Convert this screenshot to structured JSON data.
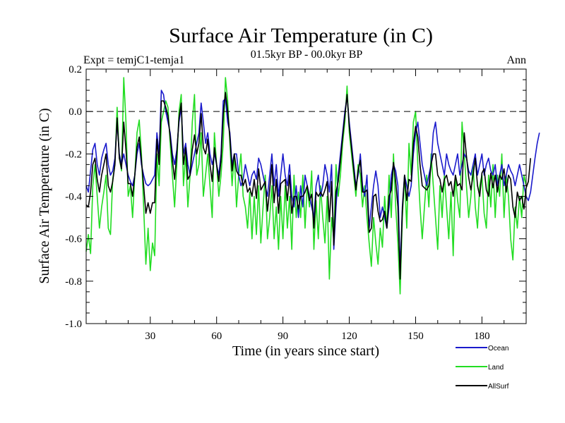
{
  "chart_data": {
    "type": "line",
    "title": "Surface Air Temperature (in C)",
    "subtitle_left": "Expt = temjC1-temja1",
    "subtitle_center": "01.5kyr BP - 00.0kyr BP",
    "subtitle_right": "Ann",
    "xlabel": "Time (in years since start)",
    "ylabel": "Surface Air Temperature (in C)",
    "xlim": [
      1,
      200
    ],
    "ylim": [
      -1.0,
      0.2
    ],
    "x_major_ticks": [
      30,
      60,
      90,
      120,
      150,
      180
    ],
    "x_tick_labels": [
      "30",
      "60",
      "90",
      "120",
      "150",
      "180"
    ],
    "x_minor_step": 10,
    "y_major_ticks": [
      -1.0,
      -0.8,
      -0.6,
      -0.4,
      -0.2,
      0.0,
      0.2
    ],
    "y_tick_labels": [
      "-1.0",
      "-0.8",
      "-0.6",
      "-0.4",
      "-0.2",
      "0.0",
      "0.2"
    ],
    "y_minor_step": 0.05,
    "reference_line": {
      "y": 0.0,
      "style": "dashed"
    },
    "series": [
      {
        "name": "Land",
        "color": "#22dd22",
        "values": [
          -0.66,
          -0.58,
          -0.67,
          -0.35,
          -0.25,
          -0.4,
          -0.55,
          -0.45,
          -0.38,
          -0.3,
          -0.55,
          -0.58,
          -0.32,
          -0.25,
          0.02,
          -0.22,
          -0.28,
          0.16,
          -0.05,
          -0.4,
          -0.35,
          -0.5,
          -0.3,
          -0.1,
          -0.04,
          -0.2,
          -0.45,
          -0.72,
          -0.55,
          -0.75,
          -0.62,
          -0.68,
          -0.2,
          -0.35,
          -0.05,
          0.0,
          0.05,
          0.02,
          -0.15,
          -0.3,
          -0.45,
          -0.25,
          0.0,
          0.08,
          -0.35,
          -0.2,
          -0.45,
          -0.3,
          -0.05,
          0.08,
          -0.3,
          -0.25,
          -0.1,
          -0.4,
          -0.3,
          -0.2,
          -0.35,
          -0.5,
          -0.1,
          -0.25,
          -0.4,
          -0.3,
          -0.15,
          0.16,
          0.05,
          -0.15,
          -0.35,
          -0.2,
          -0.45,
          -0.3,
          -0.2,
          -0.4,
          -0.45,
          -0.55,
          -0.38,
          -0.6,
          -0.4,
          -0.58,
          -0.35,
          -0.62,
          -0.45,
          -0.3,
          -0.6,
          -0.5,
          -0.35,
          -0.6,
          -0.45,
          -0.65,
          -0.4,
          -0.6,
          -0.35,
          -0.55,
          -0.4,
          -0.65,
          -0.3,
          -0.5,
          -0.38,
          -0.5,
          -0.3,
          -0.55,
          -0.35,
          -0.45,
          -0.28,
          -0.65,
          -0.42,
          -0.6,
          -0.35,
          -0.5,
          -0.62,
          -0.4,
          -0.79,
          -0.5,
          -0.6,
          -0.25,
          -0.4,
          -0.3,
          -0.15,
          -0.05,
          0.12,
          -0.1,
          -0.2,
          -0.3,
          -0.4,
          -0.25,
          -0.3,
          -0.45,
          -0.35,
          -0.5,
          -0.62,
          -0.73,
          -0.5,
          -0.62,
          -0.72,
          -0.55,
          -0.64,
          -0.4,
          -0.55,
          -0.3,
          -0.5,
          -0.2,
          -0.45,
          -0.62,
          -0.86,
          -0.5,
          -0.3,
          -0.55,
          -0.15,
          -0.3,
          -0.05,
          0.0,
          -0.25,
          -0.45,
          -0.6,
          -0.45,
          -0.3,
          -0.45,
          -0.2,
          -0.35,
          -0.5,
          -0.65,
          -0.35,
          -0.5,
          -0.3,
          -0.45,
          -0.6,
          -0.38,
          -0.68,
          -0.3,
          -0.42,
          -0.5,
          -0.05,
          -0.2,
          -0.35,
          -0.5,
          -0.4,
          -0.25,
          -0.45,
          -0.55,
          -0.35,
          -0.3,
          -0.48,
          -0.55,
          -0.3,
          -0.45,
          -0.25,
          -0.5,
          -0.3,
          -0.4,
          -0.2,
          -0.5,
          -0.3,
          -0.4,
          -0.6,
          -0.7,
          -0.45,
          -0.55,
          -0.4,
          -0.5,
          -0.3,
          -0.35
        ]
      },
      {
        "name": "Ocean",
        "color": "#1a1acc",
        "values": [
          -0.35,
          -0.38,
          -0.28,
          -0.18,
          -0.15,
          -0.25,
          -0.3,
          -0.22,
          -0.18,
          -0.15,
          -0.25,
          -0.3,
          -0.28,
          -0.22,
          -0.05,
          -0.2,
          -0.25,
          -0.2,
          -0.25,
          -0.3,
          -0.33,
          -0.35,
          -0.3,
          -0.2,
          -0.15,
          -0.25,
          -0.3,
          -0.34,
          -0.35,
          -0.34,
          -0.32,
          -0.3,
          -0.1,
          -0.2,
          0.1,
          0.08,
          0.0,
          -0.05,
          -0.1,
          -0.2,
          -0.25,
          -0.18,
          -0.05,
          0.02,
          -0.2,
          -0.15,
          -0.25,
          -0.3,
          -0.25,
          -0.2,
          -0.15,
          -0.1,
          0.04,
          -0.05,
          -0.15,
          -0.1,
          -0.2,
          -0.25,
          -0.2,
          -0.25,
          -0.3,
          -0.2,
          0.05,
          0.06,
          -0.05,
          -0.1,
          -0.25,
          -0.2,
          -0.2,
          -0.3,
          -0.35,
          -0.32,
          -0.25,
          -0.3,
          -0.35,
          -0.3,
          -0.28,
          -0.32,
          -0.22,
          -0.25,
          -0.3,
          -0.35,
          -0.4,
          -0.3,
          -0.2,
          -0.35,
          -0.25,
          -0.4,
          -0.3,
          -0.2,
          -0.3,
          -0.35,
          -0.25,
          -0.4,
          -0.45,
          -0.35,
          -0.5,
          -0.35,
          -0.45,
          -0.3,
          -0.35,
          -0.4,
          -0.45,
          -0.5,
          -0.35,
          -0.3,
          -0.4,
          -0.35,
          -0.25,
          -0.3,
          -0.38,
          -0.25,
          -0.65,
          -0.45,
          -0.3,
          -0.2,
          -0.1,
          0.0,
          0.07,
          -0.05,
          -0.15,
          -0.25,
          -0.35,
          -0.3,
          -0.2,
          -0.35,
          -0.4,
          -0.3,
          -0.55,
          -0.45,
          -0.35,
          -0.28,
          -0.35,
          -0.5,
          -0.45,
          -0.5,
          -0.55,
          -0.45,
          -0.3,
          -0.25,
          -0.28,
          -0.35,
          -0.75,
          -0.45,
          -0.3,
          -0.35,
          -0.4,
          -0.35,
          -0.2,
          -0.1,
          -0.05,
          -0.15,
          -0.25,
          -0.3,
          -0.35,
          -0.3,
          -0.25,
          -0.1,
          -0.05,
          -0.15,
          -0.2,
          -0.25,
          -0.3,
          -0.2,
          -0.25,
          -0.28,
          -0.3,
          -0.25,
          -0.2,
          -0.3,
          -0.25,
          -0.2,
          -0.22,
          -0.28,
          -0.3,
          -0.25,
          -0.2,
          -0.3,
          -0.25,
          -0.2,
          -0.3,
          -0.25,
          -0.22,
          -0.28,
          -0.3,
          -0.25,
          -0.35,
          -0.3,
          -0.25,
          -0.35,
          -0.3,
          -0.25,
          -0.28,
          -0.3,
          -0.35,
          -0.3,
          -0.25,
          -0.3,
          -0.35,
          -0.4,
          -0.42,
          -0.38,
          -0.3,
          -0.22,
          -0.15,
          -0.1
        ]
      },
      {
        "name": "AllSurf",
        "color": "#000000",
        "values": [
          -0.44,
          -0.45,
          -0.38,
          -0.25,
          -0.22,
          -0.32,
          -0.38,
          -0.3,
          -0.25,
          -0.2,
          -0.35,
          -0.38,
          -0.33,
          -0.25,
          -0.03,
          -0.22,
          -0.27,
          -0.05,
          -0.18,
          -0.34,
          -0.34,
          -0.4,
          -0.3,
          -0.17,
          -0.12,
          -0.23,
          -0.35,
          -0.48,
          -0.43,
          -0.48,
          -0.43,
          -0.43,
          -0.13,
          -0.25,
          0.05,
          0.05,
          0.02,
          -0.02,
          -0.12,
          -0.23,
          -0.32,
          -0.2,
          -0.03,
          0.04,
          -0.25,
          -0.17,
          -0.32,
          -0.3,
          -0.18,
          -0.11,
          -0.2,
          -0.15,
          -0.01,
          -0.17,
          -0.2,
          -0.13,
          -0.25,
          -0.33,
          -0.17,
          -0.25,
          -0.33,
          -0.23,
          -0.01,
          0.09,
          0.0,
          -0.12,
          -0.28,
          -0.2,
          -0.28,
          -0.3,
          -0.3,
          -0.35,
          -0.32,
          -0.38,
          -0.36,
          -0.4,
          -0.32,
          -0.41,
          -0.27,
          -0.37,
          -0.35,
          -0.33,
          -0.47,
          -0.37,
          -0.25,
          -0.43,
          -0.32,
          -0.48,
          -0.34,
          -0.33,
          -0.32,
          -0.42,
          -0.3,
          -0.48,
          -0.4,
          -0.4,
          -0.46,
          -0.4,
          -0.4,
          -0.38,
          -0.35,
          -0.42,
          -0.39,
          -0.55,
          -0.38,
          -0.4,
          -0.38,
          -0.4,
          -0.37,
          -0.33,
          -0.52,
          -0.33,
          -0.63,
          -0.38,
          -0.33,
          -0.23,
          -0.12,
          -0.02,
          0.08,
          -0.07,
          -0.17,
          -0.27,
          -0.37,
          -0.28,
          -0.23,
          -0.38,
          -0.38,
          -0.37,
          -0.57,
          -0.55,
          -0.4,
          -0.39,
          -0.47,
          -0.52,
          -0.51,
          -0.47,
          -0.55,
          -0.4,
          -0.37,
          -0.24,
          -0.33,
          -0.45,
          -0.79,
          -0.47,
          -0.3,
          -0.42,
          -0.32,
          -0.33,
          -0.15,
          -0.07,
          -0.12,
          -0.25,
          -0.35,
          -0.36,
          -0.37,
          -0.35,
          -0.25,
          -0.2,
          -0.2,
          -0.3,
          -0.32,
          -0.38,
          -0.32,
          -0.3,
          -0.35,
          -0.33,
          -0.4,
          -0.3,
          -0.35,
          -0.34,
          -0.37,
          -0.1,
          -0.21,
          -0.31,
          -0.37,
          -0.3,
          -0.22,
          -0.35,
          -0.4,
          -0.29,
          -0.27,
          -0.37,
          -0.4,
          -0.29,
          -0.36,
          -0.3,
          -0.38,
          -0.3,
          -0.32,
          -0.27,
          -0.38,
          -0.3,
          -0.32,
          -0.45,
          -0.5,
          -0.38,
          -0.42,
          -0.4,
          -0.46,
          -0.36,
          -0.33,
          -0.22
        ]
      }
    ],
    "legend": {
      "placement": "bottom-right",
      "entries": [
        "Ocean",
        "Land",
        "AllSurf"
      ]
    }
  }
}
